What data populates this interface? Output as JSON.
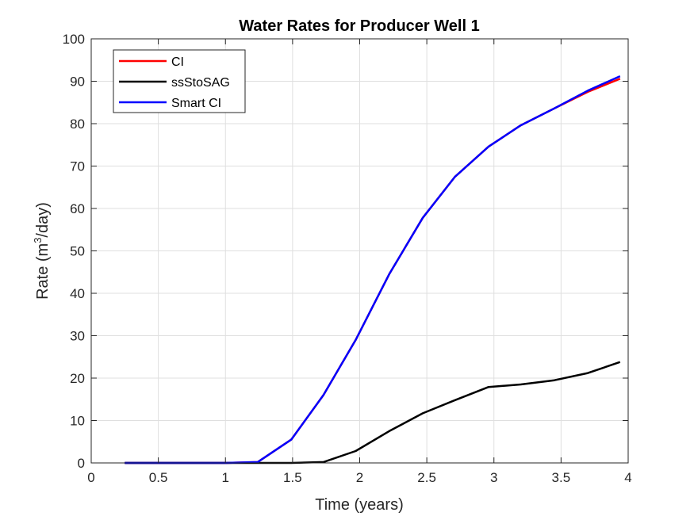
{
  "chart_data": {
    "type": "line",
    "title": "Water Rates for Producer Well 1",
    "xlabel": "Time (years)",
    "ylabel": {
      "base": "Rate (m",
      "sup": "3",
      "tail": "/day)"
    },
    "xlim": [
      0,
      4
    ],
    "ylim": [
      0,
      100
    ],
    "xticks": [
      0,
      0.5,
      1,
      1.5,
      2,
      2.5,
      3,
      3.5,
      4
    ],
    "xtick_labels": [
      "0",
      "0.5",
      "1",
      "1.5",
      "2",
      "2.5",
      "3",
      "3.5",
      "4"
    ],
    "yticks": [
      0,
      10,
      20,
      30,
      40,
      50,
      60,
      70,
      80,
      90,
      100
    ],
    "ytick_labels": [
      "0",
      "10",
      "20",
      "30",
      "40",
      "50",
      "60",
      "70",
      "80",
      "90",
      "100"
    ],
    "grid": true,
    "legend_position": "top-left",
    "series": [
      {
        "name": "CI",
        "color": "#ff0000",
        "x": [
          0.25,
          0.5,
          0.75,
          1.0,
          1.24,
          1.49,
          1.73,
          1.97,
          2.22,
          2.47,
          2.71,
          2.96,
          3.2,
          3.45,
          3.7,
          3.94
        ],
        "y": [
          0,
          0,
          0,
          0,
          0.2,
          5.5,
          16.0,
          29.0,
          44.5,
          57.8,
          67.5,
          74.6,
          79.6,
          83.6,
          87.5,
          90.6
        ]
      },
      {
        "name": "ssStoSAG",
        "color": "#000000",
        "x": [
          0.25,
          0.5,
          0.75,
          1.0,
          1.24,
          1.49,
          1.73,
          1.97,
          2.22,
          2.47,
          2.71,
          2.96,
          3.2,
          3.45,
          3.7,
          3.94
        ],
        "y": [
          0,
          0,
          0,
          0,
          0,
          0,
          0.2,
          2.8,
          7.5,
          11.7,
          14.8,
          17.9,
          18.5,
          19.5,
          21.2,
          23.8
        ]
      },
      {
        "name": "Smart CI",
        "color": "#0000ff",
        "x": [
          0.25,
          0.5,
          0.75,
          1.0,
          1.24,
          1.49,
          1.73,
          1.97,
          2.22,
          2.47,
          2.71,
          2.96,
          3.2,
          3.45,
          3.7,
          3.94
        ],
        "y": [
          0,
          0,
          0,
          0,
          0.2,
          5.5,
          16.0,
          29.0,
          44.5,
          57.8,
          67.5,
          74.6,
          79.6,
          83.6,
          87.8,
          91.2
        ]
      }
    ]
  }
}
